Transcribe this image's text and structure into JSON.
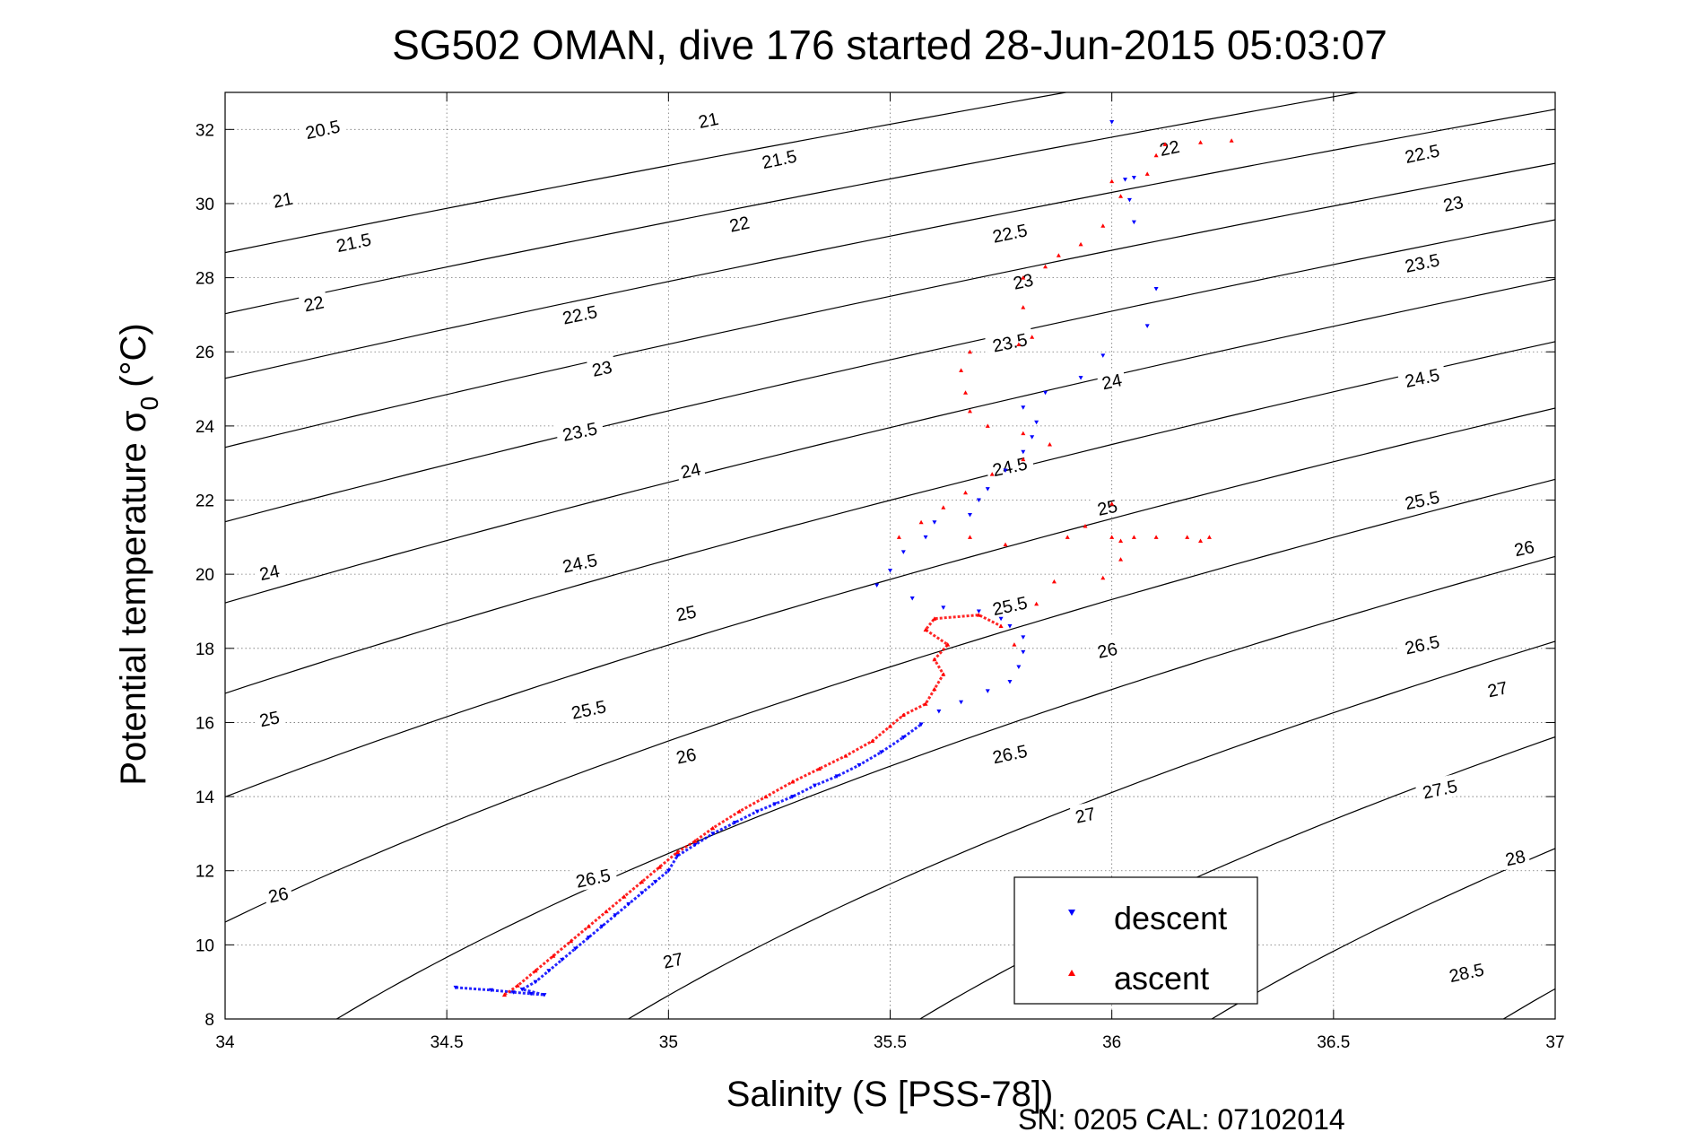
{
  "chart_data": {
    "type": "scatter",
    "title": "SG502 OMAN, dive 176 started 28-Jun-2015 05:03:07",
    "xlabel": "Salinity (S [PSS-78])",
    "ylabel_main": "Potential temperature σ",
    "ylabel_sub": "0",
    "ylabel_unit": "(°C)",
    "footer": "SN: 0205  CAL: 07102014",
    "xlim": [
      34,
      37
    ],
    "ylim": [
      8,
      33
    ],
    "xticks": [
      34,
      34.5,
      35,
      35.5,
      36,
      36.5,
      37
    ],
    "xtick_labels": [
      "34",
      "34.5",
      "35",
      "35.5",
      "36",
      "36.5",
      "37"
    ],
    "yticks": [
      8,
      10,
      12,
      14,
      16,
      18,
      20,
      22,
      24,
      26,
      28,
      30,
      32
    ],
    "ytick_labels": [
      "8",
      "10",
      "12",
      "14",
      "16",
      "18",
      "20",
      "22",
      "24",
      "26",
      "28",
      "30",
      "32"
    ],
    "grid": true,
    "legend": "bottom-right",
    "contours": {
      "levels": [
        20.5,
        21,
        21.5,
        22,
        22.5,
        23,
        23.5,
        24,
        24.5,
        25,
        25.5,
        26,
        26.5,
        27,
        27.5,
        28,
        28.5
      ],
      "line_color": "#000000",
      "labels": [
        {
          "text": "20.5",
          "x": 34.22,
          "y": 32.0
        },
        {
          "text": "21",
          "x": 35.09,
          "y": 32.25
        },
        {
          "text": "21.5",
          "x": 35.25,
          "y": 31.2
        },
        {
          "text": "22",
          "x": 36.13,
          "y": 31.5
        },
        {
          "text": "22.5",
          "x": 36.7,
          "y": 31.35
        },
        {
          "text": "21",
          "x": 34.13,
          "y": 30.1
        },
        {
          "text": "21.5",
          "x": 34.29,
          "y": 28.95
        },
        {
          "text": "22",
          "x": 35.16,
          "y": 29.45
        },
        {
          "text": "22.5",
          "x": 35.77,
          "y": 29.2
        },
        {
          "text": "23",
          "x": 36.77,
          "y": 30.0
        },
        {
          "text": "22",
          "x": 34.2,
          "y": 27.3
        },
        {
          "text": "23",
          "x": 35.8,
          "y": 27.9
        },
        {
          "text": "23.5",
          "x": 36.7,
          "y": 28.4
        },
        {
          "text": "22.5",
          "x": 34.8,
          "y": 27.0
        },
        {
          "text": "23.5",
          "x": 35.77,
          "y": 26.25
        },
        {
          "text": "23",
          "x": 34.85,
          "y": 25.55
        },
        {
          "text": "24",
          "x": 36.0,
          "y": 25.2
        },
        {
          "text": "24.5",
          "x": 36.7,
          "y": 25.3
        },
        {
          "text": "23.5",
          "x": 34.8,
          "y": 23.85
        },
        {
          "text": "24",
          "x": 35.05,
          "y": 22.8
        },
        {
          "text": "24.5",
          "x": 35.77,
          "y": 22.9
        },
        {
          "text": "25",
          "x": 35.99,
          "y": 21.8
        },
        {
          "text": "25.5",
          "x": 36.7,
          "y": 22.0
        },
        {
          "text": "24",
          "x": 34.1,
          "y": 20.05
        },
        {
          "text": "24.5",
          "x": 34.8,
          "y": 20.3
        },
        {
          "text": "26",
          "x": 36.93,
          "y": 20.7
        },
        {
          "text": "25",
          "x": 35.04,
          "y": 18.95
        },
        {
          "text": "25.5",
          "x": 35.77,
          "y": 19.15
        },
        {
          "text": "25",
          "x": 34.1,
          "y": 16.1
        },
        {
          "text": "25.5",
          "x": 34.82,
          "y": 16.35
        },
        {
          "text": "26",
          "x": 35.99,
          "y": 17.95
        },
        {
          "text": "26.5",
          "x": 36.7,
          "y": 18.1
        },
        {
          "text": "26",
          "x": 35.04,
          "y": 15.1
        },
        {
          "text": "26.5",
          "x": 35.77,
          "y": 15.15
        },
        {
          "text": "27",
          "x": 36.87,
          "y": 16.9
        },
        {
          "text": "27.5",
          "x": 36.74,
          "y": 14.2
        },
        {
          "text": "27",
          "x": 35.94,
          "y": 13.5
        },
        {
          "text": "26",
          "x": 34.12,
          "y": 11.35
        },
        {
          "text": "26.5",
          "x": 34.83,
          "y": 11.8
        },
        {
          "text": "28",
          "x": 36.91,
          "y": 12.35
        },
        {
          "text": "27",
          "x": 35.01,
          "y": 9.58
        },
        {
          "text": "28.5",
          "x": 36.8,
          "y": 9.25
        }
      ]
    },
    "series": [
      {
        "name": "descent",
        "color": "#0000ff",
        "marker": "triangle-down",
        "points": [
          [
            34.52,
            8.85
          ],
          [
            34.6,
            8.78
          ],
          [
            34.65,
            8.72
          ],
          [
            34.69,
            8.68
          ],
          [
            34.72,
            8.65
          ],
          [
            34.67,
            8.8
          ],
          [
            34.7,
            9.0
          ],
          [
            34.73,
            9.3
          ],
          [
            34.76,
            9.6
          ],
          [
            34.79,
            9.9
          ],
          [
            34.82,
            10.2
          ],
          [
            34.85,
            10.5
          ],
          [
            34.88,
            10.8
          ],
          [
            34.91,
            11.1
          ],
          [
            34.94,
            11.4
          ],
          [
            34.97,
            11.7
          ],
          [
            35.0,
            12.0
          ],
          [
            35.02,
            12.4
          ],
          [
            35.06,
            12.7
          ],
          [
            35.1,
            13.0
          ],
          [
            35.15,
            13.3
          ],
          [
            35.2,
            13.6
          ],
          [
            35.24,
            13.8
          ],
          [
            35.28,
            14.0
          ],
          [
            35.33,
            14.3
          ],
          [
            35.38,
            14.55
          ],
          [
            35.43,
            14.85
          ],
          [
            35.48,
            15.2
          ],
          [
            35.53,
            15.6
          ],
          [
            35.57,
            15.95
          ],
          [
            35.61,
            16.3
          ],
          [
            35.66,
            16.55
          ],
          [
            35.72,
            16.85
          ],
          [
            35.77,
            17.1
          ],
          [
            35.79,
            17.5
          ],
          [
            35.8,
            17.9
          ],
          [
            35.8,
            18.3
          ],
          [
            35.77,
            18.6
          ],
          [
            35.75,
            18.8
          ],
          [
            35.7,
            19.0
          ],
          [
            35.62,
            19.1
          ],
          [
            35.55,
            19.35
          ],
          [
            35.47,
            19.7
          ],
          [
            35.5,
            20.1
          ],
          [
            35.53,
            20.6
          ],
          [
            35.58,
            21.0
          ],
          [
            35.6,
            21.4
          ],
          [
            35.68,
            21.6
          ],
          [
            35.7,
            22.0
          ],
          [
            35.72,
            22.3
          ],
          [
            35.76,
            22.8
          ],
          [
            35.8,
            23.3
          ],
          [
            35.82,
            23.7
          ],
          [
            35.83,
            24.1
          ],
          [
            35.8,
            24.5
          ],
          [
            35.85,
            24.9
          ],
          [
            35.93,
            25.3
          ],
          [
            35.98,
            25.9
          ],
          [
            36.08,
            26.7
          ],
          [
            36.1,
            27.7
          ],
          [
            36.05,
            29.5
          ],
          [
            36.04,
            30.1
          ],
          [
            36.03,
            30.65
          ],
          [
            36.05,
            30.7
          ],
          [
            36.0,
            32.2
          ]
        ]
      },
      {
        "name": "ascent",
        "color": "#ff0000",
        "marker": "triangle-up",
        "points": [
          [
            34.63,
            8.65
          ],
          [
            34.66,
            8.9
          ],
          [
            34.7,
            9.3
          ],
          [
            34.74,
            9.7
          ],
          [
            34.78,
            10.1
          ],
          [
            34.82,
            10.5
          ],
          [
            34.86,
            10.9
          ],
          [
            34.9,
            11.3
          ],
          [
            34.94,
            11.7
          ],
          [
            34.98,
            12.1
          ],
          [
            35.02,
            12.5
          ],
          [
            35.06,
            12.8
          ],
          [
            35.1,
            13.15
          ],
          [
            35.16,
            13.6
          ],
          [
            35.22,
            14.0
          ],
          [
            35.28,
            14.4
          ],
          [
            35.34,
            14.75
          ],
          [
            35.4,
            15.1
          ],
          [
            35.46,
            15.5
          ],
          [
            35.5,
            15.9
          ],
          [
            35.53,
            16.2
          ],
          [
            35.58,
            16.5
          ],
          [
            35.6,
            16.9
          ],
          [
            35.62,
            17.3
          ],
          [
            35.6,
            17.7
          ],
          [
            35.63,
            18.1
          ],
          [
            35.58,
            18.5
          ],
          [
            35.6,
            18.8
          ],
          [
            35.7,
            18.9
          ],
          [
            35.75,
            18.6
          ],
          [
            35.78,
            18.1
          ],
          [
            35.83,
            19.2
          ],
          [
            35.87,
            19.8
          ],
          [
            35.76,
            20.8
          ],
          [
            35.68,
            21.0
          ],
          [
            35.52,
            21.0
          ],
          [
            35.57,
            21.4
          ],
          [
            35.62,
            21.8
          ],
          [
            35.67,
            22.2
          ],
          [
            35.73,
            22.7
          ],
          [
            35.8,
            23.1
          ],
          [
            35.86,
            23.5
          ],
          [
            35.8,
            23.8
          ],
          [
            35.72,
            24.0
          ],
          [
            35.68,
            24.4
          ],
          [
            35.67,
            24.9
          ],
          [
            35.66,
            25.5
          ],
          [
            35.68,
            26.0
          ],
          [
            35.79,
            26.2
          ],
          [
            35.82,
            26.4
          ],
          [
            35.8,
            27.2
          ],
          [
            35.8,
            28.0
          ],
          [
            35.85,
            28.3
          ],
          [
            35.88,
            28.6
          ],
          [
            35.93,
            28.9
          ],
          [
            35.98,
            29.4
          ],
          [
            36.02,
            30.2
          ],
          [
            36.0,
            30.6
          ],
          [
            36.08,
            30.8
          ],
          [
            36.1,
            31.3
          ],
          [
            36.12,
            31.6
          ],
          [
            36.2,
            31.65
          ],
          [
            36.27,
            31.7
          ],
          [
            35.9,
            21.0
          ],
          [
            36.0,
            21.0
          ],
          [
            36.05,
            21.0
          ],
          [
            36.1,
            21.0
          ],
          [
            36.17,
            21.0
          ],
          [
            36.22,
            21.0
          ],
          [
            36.0,
            21.9
          ],
          [
            36.02,
            20.4
          ],
          [
            35.98,
            19.9
          ],
          [
            36.2,
            20.9
          ],
          [
            36.02,
            20.9
          ],
          [
            35.94,
            21.3
          ]
        ]
      }
    ]
  }
}
